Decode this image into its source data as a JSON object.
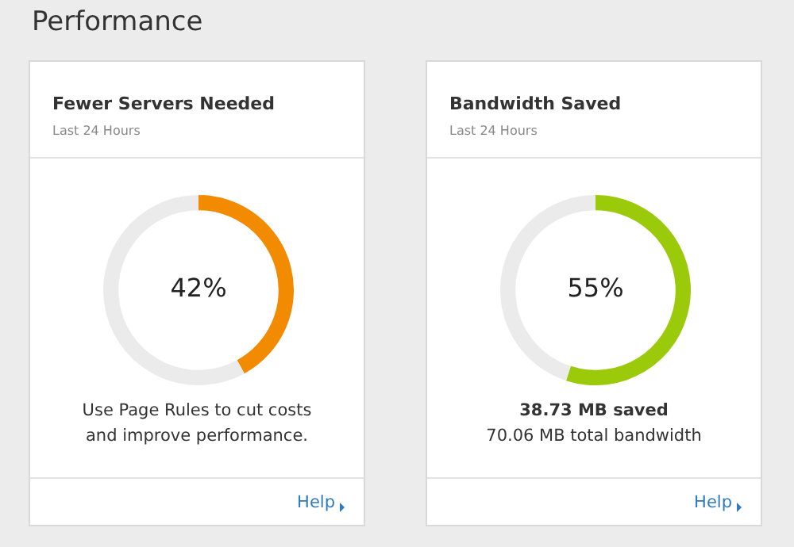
{
  "chart_data": [
    {
      "type": "other",
      "title": "Performance"
    },
    {
      "type": "donut",
      "title": "Fewer Servers Needed",
      "subtitle": "Last 24 Hours",
      "categories": [
        null,
        null
      ],
      "values": [
        42,
        58
      ],
      "colors": [
        "#f38b00",
        "#ebebeb"
      ],
      "value_labels": [
        "42%",
        null
      ],
      "annotations": [
        "Use Page Rules to cut costs and improve performance.",
        "Help"
      ]
    },
    {
      "type": "donut",
      "title": "Bandwidth Saved",
      "subtitle": "Last 24 Hours",
      "categories": [
        null,
        null
      ],
      "values": [
        55,
        45
      ],
      "colors": [
        "#9bca0b",
        "#ebebeb"
      ],
      "value_labels": [
        "55%",
        null
      ],
      "annotations": [
        "38.73 MB saved",
        "70.06 MB total bandwidth",
        "Help"
      ]
    }
  ]
}
